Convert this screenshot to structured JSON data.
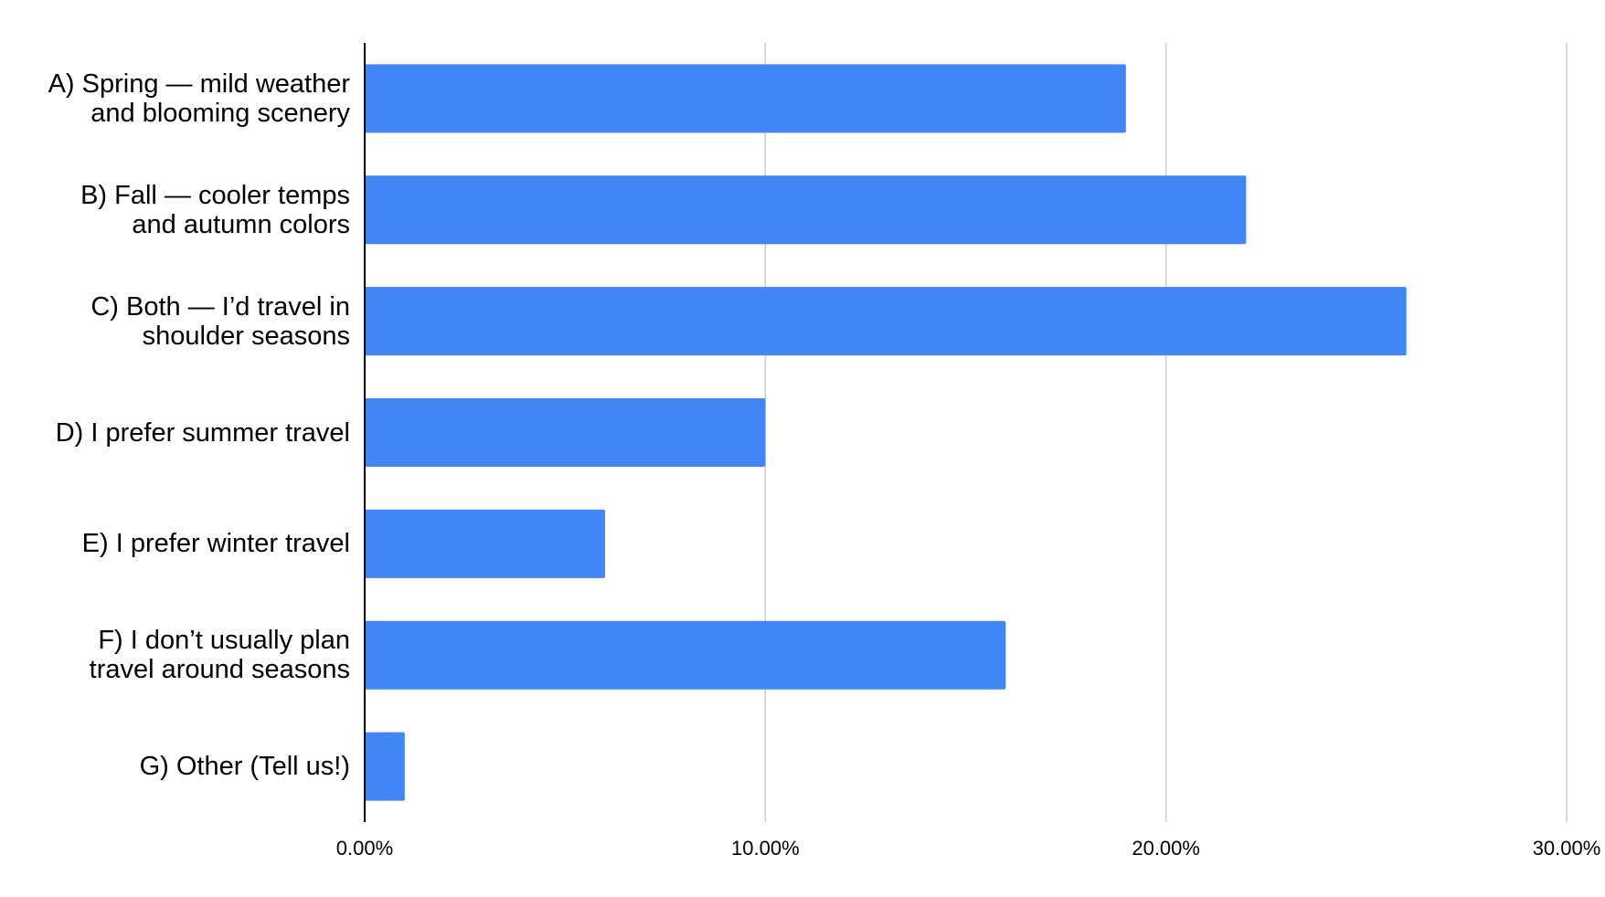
{
  "chart_data": {
    "type": "bar",
    "orientation": "horizontal",
    "categories": [
      "A) Spring — mild weather and blooming scenery",
      "B) Fall — cooler temps and autumn colors",
      "C) Both — I’d travel in shoulder seasons",
      "D) I prefer summer travel",
      "E) I prefer winter travel",
      "F) I don’t usually plan travel around seasons",
      "G) Other (Tell us!)"
    ],
    "values": [
      19,
      22,
      26,
      10,
      6,
      16,
      1
    ],
    "color": "#4285f4",
    "xlim": [
      0,
      30
    ],
    "xticks": [
      {
        "value": 0,
        "label": "0.00%"
      },
      {
        "value": 10,
        "label": "10.00%"
      },
      {
        "value": 20,
        "label": "20.00%"
      },
      {
        "value": 30,
        "label": "30.00%"
      }
    ],
    "grid": true
  }
}
